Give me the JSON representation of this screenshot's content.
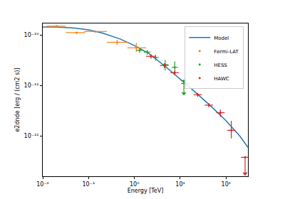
{
  "chart_data": {
    "type": "scatter",
    "log": true,
    "grid": false,
    "legend": "upper right",
    "x_label": "Energy [TeV]",
    "y_label": "e2dnde [erg / (cm2 s)]",
    "xlim": [
      0.01,
      300
    ],
    "ylim": [
      1.6e-13,
      1.7e-10
    ],
    "xticks": [
      {
        "value": 0.01,
        "label": "10⁻²"
      },
      {
        "value": 0.1,
        "label": "10⁻¹"
      },
      {
        "value": 1,
        "label": "10⁰"
      },
      {
        "value": 10,
        "label": "10¹"
      },
      {
        "value": 100,
        "label": "10²"
      }
    ],
    "yticks": [
      {
        "value": 1e-12,
        "label": "10⁻¹²"
      },
      {
        "value": 1e-11,
        "label": "10⁻¹¹"
      },
      {
        "value": 1e-10,
        "label": "10⁻¹⁰"
      }
    ],
    "series": [
      {
        "name": "Model",
        "type": "line",
        "color": "#1f77b4",
        "line_style": "solid",
        "x": [
          0.01,
          0.02,
          0.05,
          0.1,
          0.2,
          0.5,
          1,
          2,
          5,
          10,
          20,
          50,
          100,
          200,
          300
        ],
        "values": [
          1.45e-10,
          1.45e-10,
          1.38e-10,
          1.27e-10,
          1.1e-10,
          8.3e-11,
          6.2e-11,
          4.4e-11,
          2.3e-11,
          1.35e-11,
          7.8e-12,
          3.7e-12,
          2e-12,
          1e-12,
          6e-13
        ]
      },
      {
        "name": "Fermi-LAT",
        "type": "scatter",
        "color": "#ff7f0e",
        "marker": "circle",
        "x": [
          0.02,
          0.055,
          0.14,
          0.42,
          1.1
        ],
        "values": [
          1.5e-10,
          1.12e-10,
          1.18e-10,
          7.2e-11,
          5.6e-11
        ],
        "x_err_minus": [
          0.008,
          0.023,
          0.06,
          0.17,
          0.4
        ],
        "x_err_plus": [
          0.012,
          0.03,
          0.11,
          0.28,
          0.7
        ],
        "y_err_minus": [
          5e-12,
          4e-12,
          5e-12,
          8e-12,
          1e-11
        ],
        "y_err_plus": [
          5e-12,
          4e-12,
          5e-12,
          8e-12,
          1.3e-11
        ],
        "upper_limit": [
          false,
          false,
          false,
          false,
          false
        ]
      },
      {
        "name": "HESS",
        "type": "scatter",
        "color": "#2ca02c",
        "marker": "circle",
        "x": [
          1.3,
          1.9,
          2.9,
          4.7,
          7.6,
          12
        ],
        "values": [
          5e-11,
          4.6e-11,
          3.6e-11,
          2.6e-11,
          2.3e-11,
          1.25e-11
        ],
        "x_err_minus": [
          0.2,
          0.3,
          0.4,
          0.7,
          1.1,
          1.7
        ],
        "x_err_plus": [
          0.25,
          0.35,
          0.5,
          0.8,
          1.3,
          2
        ],
        "y_err_minus": [
          5e-12,
          5e-12,
          5e-12,
          6e-12,
          6e-12,
          5.5e-12
        ],
        "y_err_plus": [
          5e-12,
          5e-12,
          5e-12,
          6e-12,
          7e-12,
          0
        ],
        "upper_limit": [
          false,
          false,
          false,
          false,
          false,
          true
        ]
      },
      {
        "name": "HAWC",
        "type": "scatter",
        "color": "#d62728",
        "marker": "circle",
        "x": [
          2.3,
          4.5,
          7.6,
          13,
          24,
          42,
          75,
          130,
          260
        ],
        "values": [
          3.8e-11,
          2.5e-11,
          1.8e-11,
          1.1e-11,
          6.6e-12,
          4.1e-12,
          2.9e-12,
          1.3e-12,
          3.8e-13
        ],
        "x_err_minus": [
          0.5,
          0.9,
          1.5,
          2.5,
          4.5,
          8,
          14,
          25,
          50
        ],
        "x_err_plus": [
          0.6,
          1.1,
          1.8,
          3,
          5.5,
          10,
          18,
          30,
          60
        ],
        "y_err_minus": [
          4e-12,
          3e-12,
          2e-12,
          1.5e-12,
          6e-13,
          4e-13,
          5e-13,
          4e-13,
          2e-13
        ],
        "y_err_plus": [
          4e-12,
          3e-12,
          2e-12,
          1.5e-12,
          6e-13,
          4e-13,
          5e-13,
          7e-13,
          0
        ],
        "upper_limit": [
          false,
          false,
          false,
          false,
          false,
          false,
          false,
          false,
          true
        ]
      }
    ]
  }
}
